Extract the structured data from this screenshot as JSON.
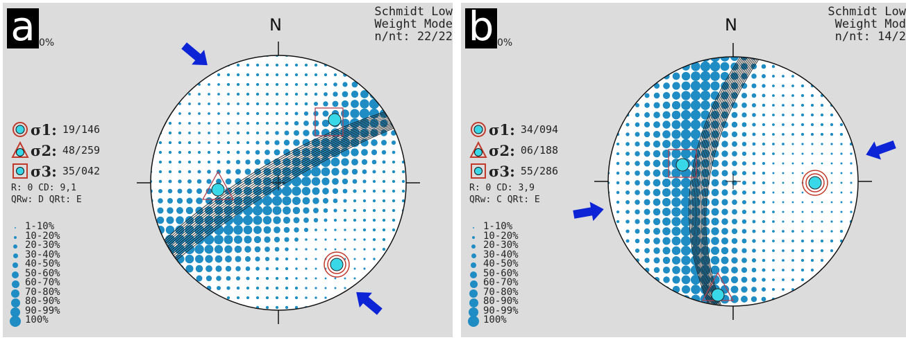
{
  "colors": {
    "density": "#1f8dc4",
    "pole": "#39d8e8",
    "sigma_mark": "#c0392b",
    "arrow": "#0c24d6",
    "background": "#dcdcdc"
  },
  "legend": {
    "zero": "0%",
    "classes": [
      "1-10%",
      "10-20%",
      "20-30%",
      "30-40%",
      "40-50%",
      "50-60%",
      "60-70%",
      "70-80%",
      "80-90%",
      "90-99%",
      "100%"
    ]
  },
  "panels": [
    {
      "label": "a",
      "north": "N",
      "header": [
        "Schmidt Low",
        "Weight Mode",
        "n/nt: 22/22"
      ],
      "stress": [
        {
          "name": "σ1:",
          "value": "19/146",
          "symbol": "circle-icon"
        },
        {
          "name": "σ2:",
          "value": "48/259",
          "symbol": "triangle-icon"
        },
        {
          "name": "σ3:",
          "value": "35/042",
          "symbol": "square-icon"
        }
      ],
      "meta": [
        "R: 0  CD: 9,1",
        "QRw: D  QRt: E"
      ],
      "arrows": [
        "compression-arrow-nw",
        "compression-arrow-se"
      ]
    },
    {
      "label": "b",
      "north": "N",
      "header": [
        "Schmidt Low",
        "Weight Mod",
        "n/nt: 14/2"
      ],
      "stress": [
        {
          "name": "σ1:",
          "value": "34/094",
          "symbol": "circle-icon"
        },
        {
          "name": "σ2:",
          "value": "06/188",
          "symbol": "triangle-icon"
        },
        {
          "name": "σ3:",
          "value": "55/286",
          "symbol": "square-icon"
        }
      ],
      "meta": [
        "R: 0  CD: 3,9",
        "QRw: C  QRt: E"
      ],
      "arrows": [
        "compression-arrow-e",
        "compression-arrow-w"
      ]
    }
  ]
}
